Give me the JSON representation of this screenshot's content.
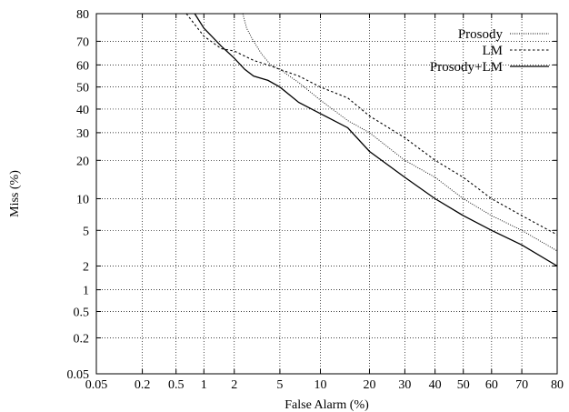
{
  "chart_data": {
    "type": "line",
    "title": "",
    "xlabel": "False Alarm (%)",
    "ylabel": "Miss (%)",
    "scale": "normal-deviate (DET) on both axes",
    "xlim": [
      0.05,
      80
    ],
    "ylim": [
      0.05,
      80
    ],
    "grid": true,
    "legend_position": "top-right",
    "x_ticks": [
      "0.05",
      "0.2",
      "0.5",
      "1",
      "2",
      "5",
      "10",
      "20",
      "30",
      "40",
      "50",
      "60",
      "70",
      "80"
    ],
    "y_ticks": [
      "0.05",
      "0.2",
      "0.5",
      "1",
      "2",
      "5",
      "10",
      "20",
      "30",
      "40",
      "50",
      "60",
      "70",
      "80"
    ],
    "series": [
      {
        "name": "Prosody",
        "style": "dotted",
        "points": [
          [
            2.4,
            80
          ],
          [
            2.6,
            75
          ],
          [
            3,
            70
          ],
          [
            3.5,
            65
          ],
          [
            4.2,
            60
          ],
          [
            5,
            58
          ],
          [
            7,
            52
          ],
          [
            10,
            44
          ],
          [
            15,
            35
          ],
          [
            20,
            30
          ],
          [
            30,
            20
          ],
          [
            40,
            15
          ],
          [
            50,
            10
          ],
          [
            60,
            7
          ],
          [
            70,
            5
          ],
          [
            80,
            3
          ]
        ]
      },
      {
        "name": "LM",
        "style": "dashed",
        "points": [
          [
            0.65,
            80
          ],
          [
            1,
            72
          ],
          [
            1.5,
            67
          ],
          [
            2,
            66
          ],
          [
            3,
            62
          ],
          [
            4,
            60
          ],
          [
            5,
            58
          ],
          [
            7,
            55
          ],
          [
            10,
            50
          ],
          [
            15,
            45
          ],
          [
            20,
            37
          ],
          [
            30,
            28
          ],
          [
            40,
            20
          ],
          [
            50,
            15
          ],
          [
            60,
            10
          ],
          [
            70,
            7
          ],
          [
            80,
            4.5
          ]
        ]
      },
      {
        "name": "Prosody+LM",
        "style": "solid",
        "points": [
          [
            0.8,
            80
          ],
          [
            1,
            75
          ],
          [
            1.5,
            68
          ],
          [
            2,
            63
          ],
          [
            2.5,
            58
          ],
          [
            3,
            55
          ],
          [
            4,
            53
          ],
          [
            5,
            50
          ],
          [
            7,
            43
          ],
          [
            10,
            38
          ],
          [
            15,
            32
          ],
          [
            20,
            23
          ],
          [
            30,
            15
          ],
          [
            40,
            10
          ],
          [
            50,
            7
          ],
          [
            60,
            5
          ],
          [
            70,
            3.5
          ],
          [
            80,
            2
          ]
        ]
      }
    ]
  }
}
